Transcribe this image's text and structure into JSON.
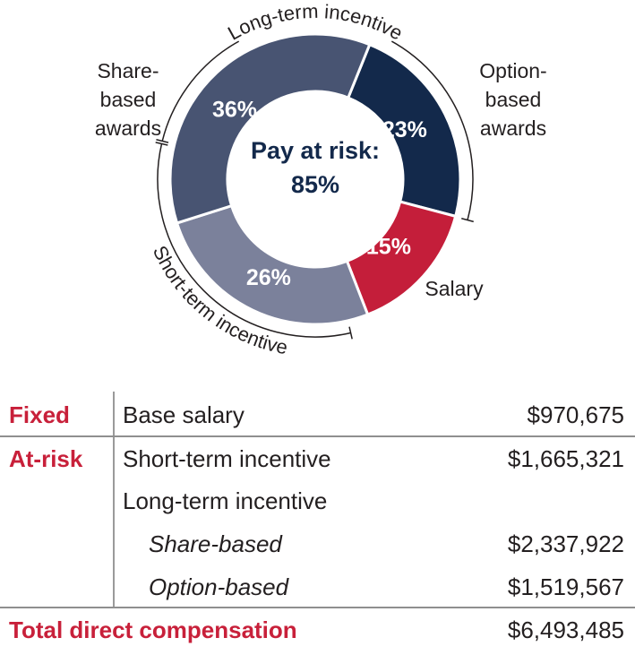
{
  "chart_data": {
    "type": "pie",
    "variant": "donut",
    "center_label": [
      "Pay at risk:",
      "85%"
    ],
    "slices": [
      {
        "label": "Option-based awards",
        "label_lines": [
          "Option-",
          "based",
          "awards"
        ],
        "value": 23,
        "value_label": "23%",
        "color": "#13294b"
      },
      {
        "label": "Salary",
        "label_lines": [
          "Salary"
        ],
        "value": 15,
        "value_label": "15%",
        "color": "#c41e3a"
      },
      {
        "label": "Short-term incentive",
        "label_lines": [],
        "value": 26,
        "value_label": "26%",
        "color": "#7b819b"
      },
      {
        "label": "Share-based awards",
        "label_lines": [
          "Share-",
          "based",
          "awards"
        ],
        "value": 36,
        "value_label": "36%",
        "color": "#485472"
      }
    ],
    "brackets": [
      {
        "label": "Long-term incentive",
        "covers": [
          "Share-based awards",
          "Option-based awards"
        ]
      },
      {
        "label": "Short-term incentive",
        "covers": [
          "Short-term incentive"
        ]
      }
    ]
  },
  "table": {
    "rows": [
      {
        "category": "Fixed",
        "item": "Base salary",
        "amount": "$970,675"
      },
      {
        "category": "At-risk",
        "item": "Short-term incentive",
        "amount": "$1,665,321"
      },
      {
        "category": "",
        "item": "Long-term incentive",
        "amount": ""
      },
      {
        "category": "",
        "item": "Share-based",
        "amount": "$2,337,922",
        "italic": true
      },
      {
        "category": "",
        "item": "Option-based",
        "amount": "$1,519,567",
        "italic": true
      }
    ],
    "total": {
      "label": "Total direct compensation",
      "amount": "$6,493,485"
    }
  },
  "colors": {
    "accent": "#c8203a",
    "text": "#231f20",
    "center_text": "#13294b"
  }
}
